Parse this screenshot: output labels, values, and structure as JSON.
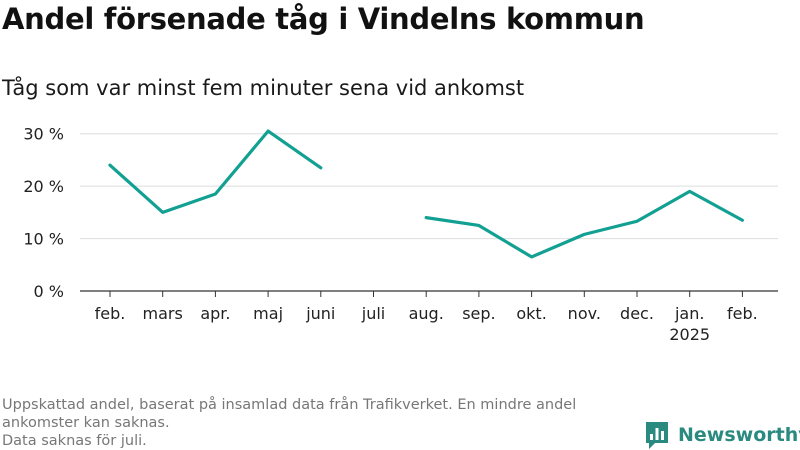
{
  "title": "Andel försenade tåg i Vindelns kommun",
  "subtitle": "Tåg som var minst fem minuter sena vid ankomst",
  "footnote_lines": [
    "Uppskattad andel, baserat på insamlad data från Trafikverket. En mindre andel ankomster kan saknas.",
    "Data saknas för juli."
  ],
  "brand": {
    "name": "Newsworthy",
    "logo_icon": "bar-chart-speech-bubble-icon"
  },
  "colors": {
    "line": "#12a092",
    "grid": "#dddddd",
    "axis": "#333333",
    "brand": "#2a8a80"
  },
  "chart_data": {
    "type": "line",
    "title": "Andel försenade tåg i Vindelns kommun",
    "subtitle": "Tåg som var minst fem minuter sena vid ankomst",
    "categories": [
      "feb.",
      "mars",
      "apr.",
      "maj",
      "juni",
      "juli",
      "aug.",
      "sep.",
      "okt.",
      "nov.",
      "dec.",
      "jan.",
      "feb."
    ],
    "year_labels": [
      "",
      "",
      "",
      "",
      "",
      "",
      "",
      "",
      "",
      "",
      "",
      "2025",
      ""
    ],
    "series": [
      {
        "values": [
          24,
          15,
          18.5,
          30.5,
          23.5,
          null,
          14,
          12.5,
          6.5,
          10.8,
          13.3,
          19,
          13.5
        ]
      }
    ],
    "y_ticks": [
      0,
      10,
      20,
      30
    ],
    "y_tick_labels": [
      "0 %",
      "10 %",
      "20 %",
      "30 %"
    ],
    "ylim": [
      0,
      33
    ],
    "grid": true,
    "legend": "none"
  }
}
